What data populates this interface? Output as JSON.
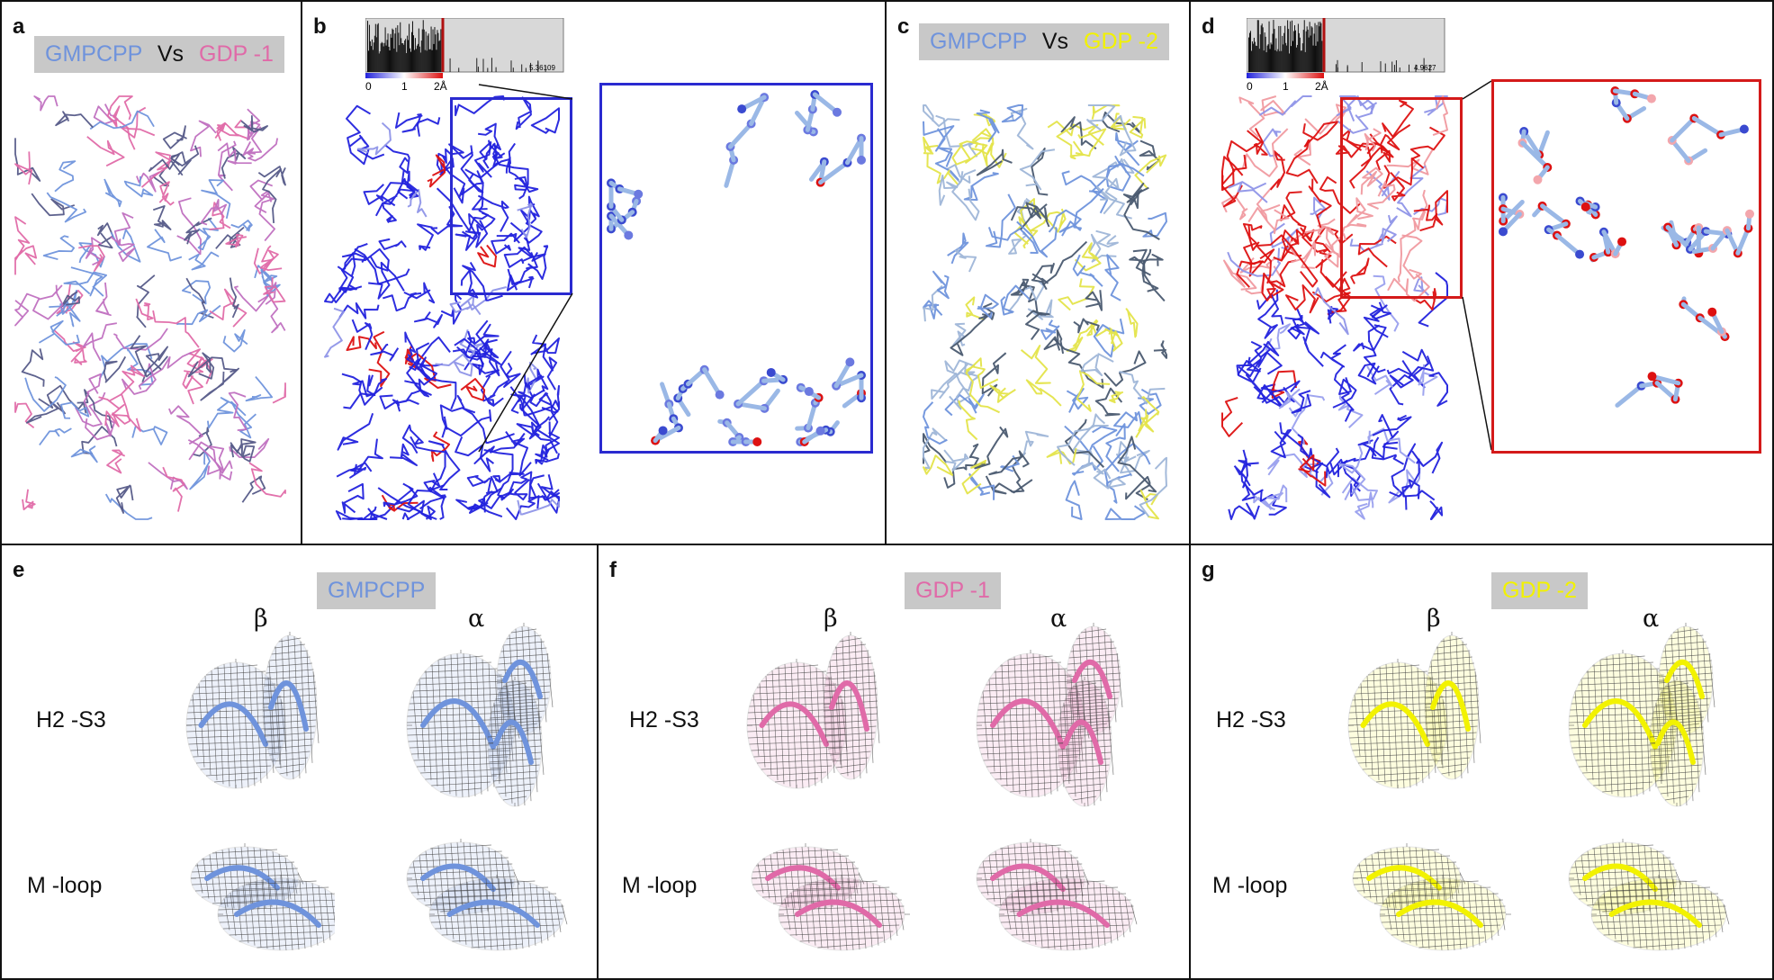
{
  "colors": {
    "gmpcpp": "#6f93dc",
    "gdp1": "#e06aa8",
    "gdp2": "#f2f200",
    "low": "#2222dd",
    "high": "#dd1111",
    "chip_bg": "#c8c8c8"
  },
  "panels": {
    "a": {
      "letter": "a",
      "label_left": "GMPCPP",
      "label_vs": "Vs",
      "label_right": "GDP -1"
    },
    "b": {
      "letter": "b",
      "hist_max": "5.36109",
      "scale_ticks": [
        "0",
        "1",
        "2Å"
      ]
    },
    "c": {
      "letter": "c",
      "label_left": "GMPCPP",
      "label_vs": "Vs",
      "label_right": "GDP -2"
    },
    "d": {
      "letter": "d",
      "hist_max": "4.9627",
      "scale_ticks": [
        "0",
        "1",
        "2Å"
      ]
    },
    "e": {
      "letter": "e",
      "chip": "GMPCPP",
      "beta": "β",
      "alpha": "α",
      "row1": "H2 -S3",
      "row2": "M -loop"
    },
    "f": {
      "letter": "f",
      "chip": "GDP -1",
      "beta": "β",
      "alpha": "α",
      "row1": "H2 -S3",
      "row2": "M -loop"
    },
    "g": {
      "letter": "g",
      "chip": "GDP -2",
      "beta": "β",
      "alpha": "α",
      "row1": "H2 -S3",
      "row2": "M -loop"
    }
  }
}
